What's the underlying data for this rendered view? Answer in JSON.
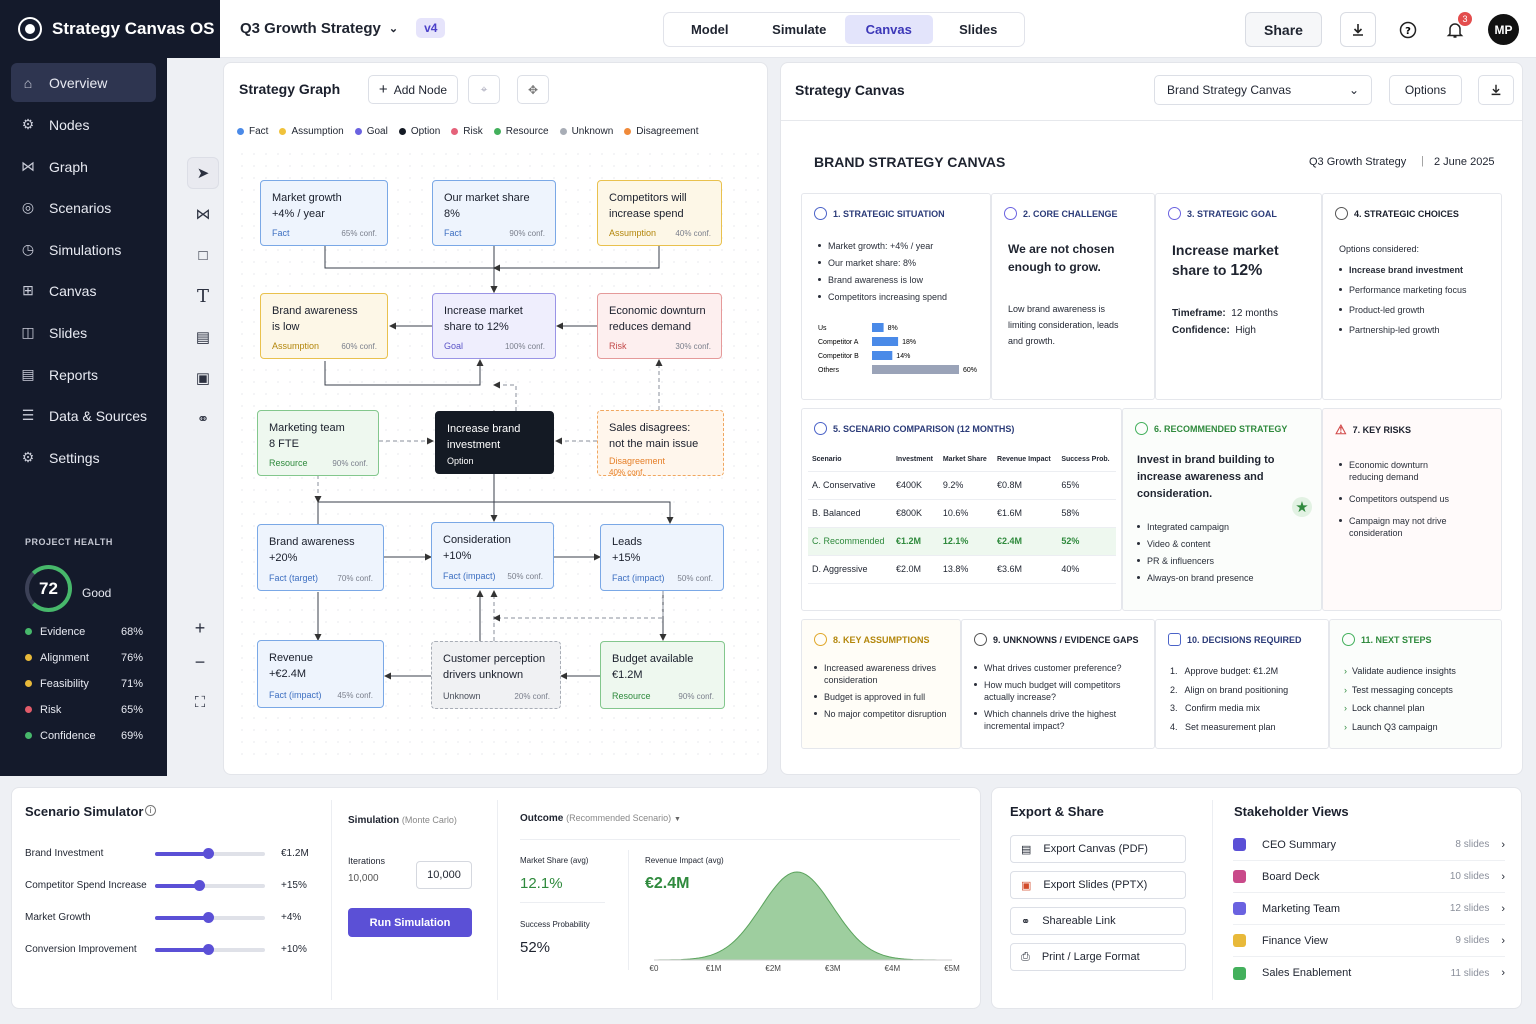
{
  "app": {
    "name": "Strategy Canvas OS",
    "project": "Q3 Growth Strategy",
    "version": "v4"
  },
  "modes": [
    "Model",
    "Simulate",
    "Canvas",
    "Slides"
  ],
  "header": {
    "share": "Share",
    "notifications": "3",
    "avatar": "MP"
  },
  "sidebar": {
    "items": [
      {
        "label": "Overview",
        "icon": "home-icon"
      },
      {
        "label": "Nodes",
        "icon": "nodes-icon"
      },
      {
        "label": "Graph",
        "icon": "graph-icon"
      },
      {
        "label": "Scenarios",
        "icon": "scenarios-icon"
      },
      {
        "label": "Simulations",
        "icon": "simulations-icon"
      },
      {
        "label": "Canvas",
        "icon": "canvas-icon"
      },
      {
        "label": "Slides",
        "icon": "slides-icon"
      },
      {
        "label": "Reports",
        "icon": "reports-icon"
      },
      {
        "label": "Data & Sources",
        "icon": "database-icon"
      },
      {
        "label": "Settings",
        "icon": "gear-icon"
      }
    ],
    "health": {
      "title": "PROJECT HEALTH",
      "score": "72",
      "status": "Good",
      "metrics": [
        {
          "label": "Evidence",
          "value": "68%",
          "color": "#47b86b"
        },
        {
          "label": "Alignment",
          "value": "76%",
          "color": "#e8b93a"
        },
        {
          "label": "Feasibility",
          "value": "71%",
          "color": "#e8b93a"
        },
        {
          "label": "Risk",
          "value": "65%",
          "color": "#e25c6a"
        },
        {
          "label": "Confidence",
          "value": "69%",
          "color": "#47b86b"
        }
      ]
    }
  },
  "graph": {
    "title": "Strategy Graph",
    "add_node": "Add Node",
    "legend": [
      {
        "label": "Fact",
        "color": "#4a8ae8"
      },
      {
        "label": "Assumption",
        "color": "#f0c23b"
      },
      {
        "label": "Goal",
        "color": "#6a62e0"
      },
      {
        "label": "Option",
        "color": "#141a24"
      },
      {
        "label": "Risk",
        "color": "#e5627a"
      },
      {
        "label": "Resource",
        "color": "#43b05c"
      },
      {
        "label": "Unknown",
        "color": "#a8adb6"
      },
      {
        "label": "Disagreement",
        "color": "#f08a3a"
      }
    ],
    "nodes": {
      "n1": {
        "l1": "Market growth",
        "l2": "+4% / year",
        "type": "Fact",
        "conf": "65% conf."
      },
      "n2": {
        "l1": "Our market share",
        "l2": "8%",
        "type": "Fact",
        "conf": "90% conf."
      },
      "n3": {
        "l1": "Competitors will",
        "l2": "increase spend",
        "type": "Assumption",
        "conf": "40% conf."
      },
      "n4": {
        "l1": "Brand awareness",
        "l2": "is low",
        "type": "Assumption",
        "conf": "60% conf."
      },
      "n5": {
        "l1": "Increase market",
        "l2": "share to 12%",
        "type": "Goal",
        "conf": "100% conf."
      },
      "n6": {
        "l1": "Economic downturn",
        "l2": "reduces demand",
        "type": "Risk",
        "conf": "30% conf."
      },
      "n7": {
        "l1": "Marketing team",
        "l2": "8 FTE",
        "type": "Resource",
        "conf": "90% conf."
      },
      "n8": {
        "l1": "Increase brand",
        "l2": "investment",
        "type": "Option",
        "conf": ""
      },
      "n9": {
        "l1": "Sales disagrees:",
        "l2": "not the main issue",
        "type": "Disagreement",
        "conf": "40% conf."
      },
      "n10": {
        "l1": "Brand awareness",
        "l2": "+20%",
        "type": "Fact (target)",
        "conf": "70% conf."
      },
      "n11": {
        "l1": "Consideration",
        "l2": "+10%",
        "type": "Fact (impact)",
        "conf": "50% conf."
      },
      "n12": {
        "l1": "Leads",
        "l2": "+15%",
        "type": "Fact (impact)",
        "conf": "50% conf."
      },
      "n13": {
        "l1": "Revenue",
        "l2": "+€2.4M",
        "type": "Fact (impact)",
        "conf": "45% conf."
      },
      "n14": {
        "l1": "Customer perception",
        "l2": "drivers unknown",
        "type": "Unknown",
        "conf": "20% conf."
      },
      "n15": {
        "l1": "Budget available",
        "l2": "€1.2M",
        "type": "Resource",
        "conf": "90% conf."
      }
    }
  },
  "canvas": {
    "panel_title": "Strategy Canvas",
    "select": "Brand Strategy Canvas",
    "options": "Options",
    "title": "BRAND STRATEGY CANVAS",
    "subtitle": "Q3 Growth Strategy",
    "date": "2 June 2025",
    "s1": {
      "title": "1. STRATEGIC SITUATION",
      "bullets": [
        "Market growth: +4% / year",
        "Our market share: 8%",
        "Brand awareness is low",
        "Competitors increasing spend"
      ],
      "bars": [
        {
          "label": "Us",
          "value": 8,
          "text": "8%"
        },
        {
          "label": "Competitor A",
          "value": 18,
          "text": "18%"
        },
        {
          "label": "Competitor B",
          "value": 14,
          "text": "14%"
        },
        {
          "label": "Others",
          "value": 60,
          "text": "60%"
        }
      ]
    },
    "s2": {
      "title": "2. CORE CHALLENGE",
      "headline": "We are not chosen enough to grow.",
      "body": "Low brand awareness is limiting consideration, leads and growth."
    },
    "s3": {
      "title": "3. STRATEGIC GOAL",
      "headline_a": "Increase market share to ",
      "headline_b": "12%",
      "tf_label": "Timeframe:",
      "tf": "12 months",
      "conf_label": "Confidence:",
      "conf": "High"
    },
    "s4": {
      "title": "4. STRATEGIC CHOICES",
      "intro": "Options considered:",
      "bullets": [
        "Increase brand investment",
        "Performance marketing focus",
        "Product-led growth",
        "Partnership-led growth"
      ]
    },
    "s5": {
      "title": "5. SCENARIO COMPARISON (12 MONTHS)",
      "headers": [
        "Scenario",
        "Investment",
        "Market Share",
        "Revenue Impact",
        "Success Prob."
      ],
      "rows": [
        [
          "A. Conservative",
          "€400K",
          "9.2%",
          "€0.8M",
          "65%"
        ],
        [
          "B. Balanced",
          "€800K",
          "10.6%",
          "€1.6M",
          "58%"
        ],
        [
          "C. Recommended",
          "€1.2M",
          "12.1%",
          "€2.4M",
          "52%"
        ],
        [
          "D. Aggressive",
          "€2.0M",
          "13.8%",
          "€3.6M",
          "40%"
        ]
      ]
    },
    "s6": {
      "title": "6. RECOMMENDED STRATEGY",
      "headline": "Invest in brand building to increase awareness and consideration.",
      "bullets": [
        "Integrated campaign",
        "Video & content",
        "PR & influencers",
        "Always-on brand presence"
      ]
    },
    "s7": {
      "title": "7. KEY RISKS",
      "bullets": [
        "Economic downturn reducing demand",
        "Competitors outspend us",
        "Campaign may not drive consideration"
      ]
    },
    "s8": {
      "title": "8. KEY ASSUMPTIONS",
      "bullets": [
        "Increased awareness drives consideration",
        "Budget is approved in full",
        "No major competitor disruption"
      ]
    },
    "s9": {
      "title": "9. UNKNOWNS / EVIDENCE GAPS",
      "bullets": [
        "What drives customer preference?",
        "How much budget will competitors actually increase?",
        "Which channels drive the highest incremental impact?"
      ]
    },
    "s10": {
      "title": "10. DECISIONS REQUIRED",
      "items": [
        "Approve budget: €1.2M",
        "Align on brand positioning",
        "Confirm media mix",
        "Set measurement plan"
      ]
    },
    "s11": {
      "title": "11. NEXT STEPS",
      "bullets": [
        "Validate audience insights",
        "Test messaging concepts",
        "Lock channel plan",
        "Launch Q3 campaign"
      ]
    }
  },
  "simulator": {
    "title": "Scenario Simulator",
    "sliders": [
      {
        "label": "Brand Investment",
        "value": "€1.2M",
        "pct": 0.48
      },
      {
        "label": "Competitor Spend Increase",
        "value": "+15%",
        "pct": 0.4
      },
      {
        "label": "Market Growth",
        "value": "+4%",
        "pct": 0.48
      },
      {
        "label": "Conversion Improvement",
        "value": "+10%",
        "pct": 0.48
      }
    ],
    "sim_title": "Simulation",
    "sim_sub": "(Monte Carlo)",
    "iter_label": "Iterations",
    "iter_value": "10,000",
    "iter_input": "10,000",
    "run": "Run Simulation",
    "outcome_title": "Outcome",
    "outcome_sub": "(Recommended Scenario)",
    "ms_label": "Market Share (avg)",
    "ms_value": "12.1%",
    "sp_label": "Success Probability",
    "sp_value": "52%",
    "ri_label": "Revenue Impact (avg)",
    "ri_value": "€2.4M"
  },
  "chart_data": {
    "type": "area",
    "title": "",
    "xlabel": "Revenue Impact",
    "ylabel": "",
    "x": [
      "€0",
      "€1M",
      "€2M",
      "€3M",
      "€4M",
      "€5M"
    ],
    "xlim": [
      0,
      5
    ],
    "mean": 2.4,
    "sd": 0.6,
    "color": "#7dbd7f"
  },
  "export": {
    "title": "Export & Share",
    "items": [
      "Export Canvas (PDF)",
      "Export Slides (PPTX)",
      "Shareable Link",
      "Print / Large Format"
    ]
  },
  "stakeholders": {
    "title": "Stakeholder Views",
    "items": [
      {
        "label": "CEO Summary",
        "count": "8 slides",
        "color": "#5b50d6"
      },
      {
        "label": "Board Deck",
        "count": "10 slides",
        "color": "#c94a8a"
      },
      {
        "label": "Marketing Team",
        "count": "12 slides",
        "color": "#6a62e0"
      },
      {
        "label": "Finance View",
        "count": "9 slides",
        "color": "#e8b93a"
      },
      {
        "label": "Sales Enablement",
        "count": "11 slides",
        "color": "#43b05c"
      }
    ]
  }
}
